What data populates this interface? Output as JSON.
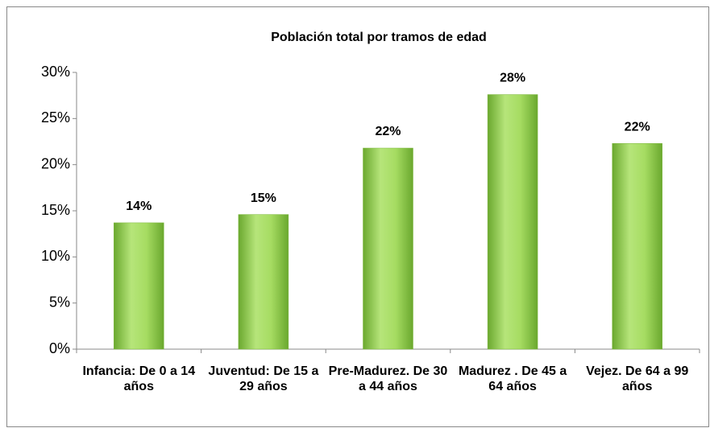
{
  "chart_data": {
    "type": "bar",
    "title": "Población total por tramos de edad",
    "categories": [
      "Infancia: De 0 a 14 años",
      "Juventud: De 15 a 29 años",
      "Pre-Madurez. De 30 a 44 años",
      "Madurez . De 45 a 64 años",
      "Vejez. De 64 a 99 años"
    ],
    "values": [
      13.7,
      14.6,
      21.8,
      27.6,
      22.3
    ],
    "value_labels": [
      "14%",
      "15%",
      "22%",
      "28%",
      "22%"
    ],
    "color": "#92d050",
    "ylim": [
      0,
      30
    ],
    "yticks": [
      {
        "value": 0,
        "label": "0%"
      },
      {
        "value": 5,
        "label": "5%"
      },
      {
        "value": 10,
        "label": "10%"
      },
      {
        "value": 15,
        "label": "15%"
      },
      {
        "value": 20,
        "label": "20%"
      },
      {
        "value": 25,
        "label": "25%"
      },
      {
        "value": 30,
        "label": "30%"
      }
    ],
    "grid": false
  }
}
